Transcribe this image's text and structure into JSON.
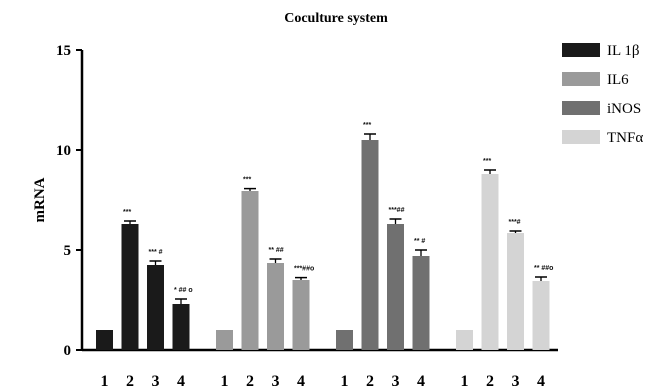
{
  "chart_data": {
    "type": "bar",
    "title": "Coculture system",
    "xlabel": "",
    "ylabel": "mRNA",
    "ylim": [
      0,
      15
    ],
    "yticks": [
      "0",
      "5",
      "10",
      "15"
    ],
    "categories": [
      "1",
      "2",
      "3",
      "4"
    ],
    "legend_position": "top-right",
    "series": [
      {
        "name": "IL 1β",
        "color": "#1a1a1a",
        "values": [
          1.0,
          6.3,
          4.25,
          2.3
        ],
        "errors": [
          0,
          0.15,
          0.2,
          0.25
        ],
        "annotations": [
          "",
          "***",
          "*** #",
          "* ## o"
        ]
      },
      {
        "name": "IL6",
        "color": "#9a9a9a",
        "values": [
          1.0,
          7.95,
          4.35,
          3.5
        ],
        "errors": [
          0,
          0.12,
          0.2,
          0.12
        ],
        "annotations": [
          "",
          "***",
          "** ##",
          "***##o"
        ]
      },
      {
        "name": "iNOS",
        "color": "#707070",
        "values": [
          1.0,
          10.5,
          6.3,
          4.7
        ],
        "errors": [
          0,
          0.3,
          0.25,
          0.3
        ],
        "annotations": [
          "",
          "***",
          "***##",
          "** #"
        ]
      },
      {
        "name": "TNFα",
        "color": "#d4d4d4",
        "values": [
          1.0,
          8.8,
          5.85,
          3.45
        ],
        "errors": [
          0,
          0.2,
          0.1,
          0.2
        ],
        "annotations": [
          "",
          "***",
          "***#",
          "** ##o"
        ]
      }
    ]
  }
}
